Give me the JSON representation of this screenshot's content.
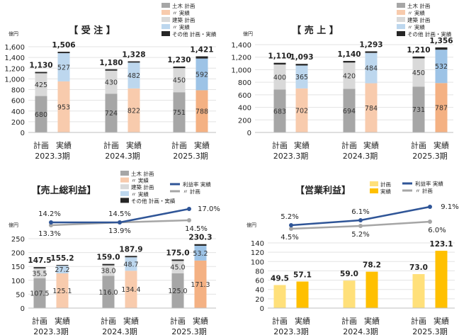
{
  "chart_data": [
    {
      "type": "bar",
      "title": "【 受 注 】",
      "unit": "億円",
      "ylim": [
        0,
        1600
      ],
      "yticks": [
        0,
        200,
        400,
        600,
        800,
        1000,
        1200,
        1400,
        1600
      ],
      "yticks_label": [
        "0",
        "200",
        "400",
        "600",
        "800",
        "1,000",
        "1,200",
        "1,400",
        "1,600"
      ],
      "categories": [
        "計画",
        "実績",
        "計画",
        "実績",
        "計画",
        "実績"
      ],
      "periods": [
        "2023.3期",
        "2024.3期",
        "2025.3期"
      ],
      "legend": [
        "土木 計画",
        "〃 実績",
        "建築 計画",
        "〃 実績",
        "その他 計画・実績"
      ],
      "series": [
        {
          "name": "土木",
          "values": [
            680,
            953,
            724,
            822,
            751,
            788
          ]
        },
        {
          "name": "建築",
          "values": [
            425,
            527,
            430,
            482,
            450,
            592
          ]
        },
        {
          "name": "その他",
          "values": [
            25,
            26,
            26,
            24,
            29,
            41
          ]
        }
      ],
      "totals": [
        "1,130",
        "1,506",
        "1,180",
        "1,328",
        "1,230",
        "1,421"
      ],
      "seg_labels": [
        [
          "680",
          "425"
        ],
        [
          "953",
          "527"
        ],
        [
          "724",
          "430"
        ],
        [
          "822",
          "482"
        ],
        [
          "751",
          "450"
        ],
        [
          "788",
          "592"
        ]
      ]
    },
    {
      "type": "bar",
      "title": "【 売 上 】",
      "unit": "億円",
      "ylim": [
        0,
        1400
      ],
      "yticks": [
        0,
        200,
        400,
        600,
        800,
        1000,
        1200,
        1400
      ],
      "yticks_label": [
        "0",
        "200",
        "400",
        "600",
        "800",
        "1,000",
        "1,200",
        "1,400"
      ],
      "categories": [
        "計画",
        "実績",
        "計画",
        "実績",
        "計画",
        "実績"
      ],
      "periods": [
        "2023.3期",
        "2024.3期",
        "2025.3期"
      ],
      "legend": [
        "土木 計画",
        "〃 実績",
        "建築 計画",
        "〃 実績",
        "その他 計画・実績"
      ],
      "series": [
        {
          "name": "土木",
          "values": [
            683,
            702,
            694,
            784,
            731,
            787
          ]
        },
        {
          "name": "建築",
          "values": [
            400,
            365,
            420,
            484,
            450,
            532
          ]
        },
        {
          "name": "その他",
          "values": [
            27,
            26,
            26,
            25,
            29,
            37
          ]
        }
      ],
      "totals": [
        "1,110",
        "1,093",
        "1,140",
        "1,293",
        "1,210",
        "1,356"
      ],
      "seg_labels": [
        [
          "683",
          "400"
        ],
        [
          "702",
          "365"
        ],
        [
          "694",
          "420"
        ],
        [
          "784",
          "484"
        ],
        [
          "731",
          "450"
        ],
        [
          "787",
          "532"
        ]
      ]
    },
    {
      "type": "bar",
      "title": "【売上総利益】",
      "unit": "億円",
      "ylim": [
        0,
        250
      ],
      "yticks": [
        0,
        50,
        100,
        150,
        200,
        250
      ],
      "yticks_label": [
        "0",
        "50",
        "100",
        "150",
        "200",
        "250"
      ],
      "categories": [
        "計画",
        "実績",
        "計画",
        "実績",
        "計画",
        "実績"
      ],
      "periods": [
        "2023.3期",
        "2024.3期",
        "2025.3期"
      ],
      "legend": [
        "土木 計画",
        "〃 実績",
        "建築 計画",
        "〃 実績",
        "その他 計画・実績",
        "利益率 実績",
        "〃 計画"
      ],
      "series": [
        {
          "name": "土木",
          "values": [
            107.5,
            125.1,
            116.0,
            134.4,
            125.0,
            171.3
          ]
        },
        {
          "name": "建築",
          "values": [
            35.5,
            27.2,
            38.0,
            48.7,
            45.0,
            53.2
          ]
        },
        {
          "name": "その他",
          "values": [
            4.5,
            2.9,
            5.0,
            4.8,
            5.0,
            5.8
          ]
        }
      ],
      "totals": [
        "147.5",
        "155.2",
        "159.0",
        "187.9",
        "175.0",
        "230.3"
      ],
      "seg_labels": [
        [
          "107.5",
          "35.5"
        ],
        [
          "125.1",
          "27.2"
        ],
        [
          "116.0",
          "38.0"
        ],
        [
          "134.4",
          "48.7"
        ],
        [
          "125.0",
          "45.0"
        ],
        [
          "171.3",
          "53.2"
        ]
      ],
      "margin_actual": [
        14.2,
        14.5,
        17.0
      ],
      "margin_plan": [
        13.3,
        13.9,
        14.5
      ],
      "margin_actual_labels": [
        "14.2%",
        "14.5%",
        "17.0%"
      ],
      "margin_plan_labels": [
        "13.3%",
        "13.9%",
        "14.5%"
      ]
    },
    {
      "type": "bar",
      "title": "【営業利益】",
      "unit": "億円",
      "ylim": [
        0,
        140
      ],
      "yticks": [
        0,
        20,
        40,
        60,
        80,
        100,
        120,
        140
      ],
      "yticks_label": [
        "0",
        "20",
        "40",
        "60",
        "80",
        "100",
        "120",
        "140"
      ],
      "categories": [
        "計画",
        "実績",
        "計画",
        "実績",
        "計画",
        "実績"
      ],
      "periods": [
        "2023.3期",
        "2024.3期",
        "2025.3期"
      ],
      "legend": [
        "計画",
        "実績",
        "利益率 実績",
        "〃 計画"
      ],
      "values": [
        49.5,
        57.1,
        59.0,
        78.2,
        73.0,
        123.1
      ],
      "totals": [
        "49.5",
        "57.1",
        "59.0",
        "78.2",
        "73.0",
        "123.1"
      ],
      "margin_actual": [
        5.2,
        6.1,
        9.1
      ],
      "margin_plan": [
        4.5,
        5.2,
        6.0
      ],
      "margin_actual_labels": [
        "5.2%",
        "6.1%",
        "9.1%"
      ],
      "margin_plan_labels": [
        "4.5%",
        "5.2%",
        "6.0%"
      ]
    }
  ],
  "colors": {
    "civil_plan": "#a6a6a6",
    "civil_actual": "#f8cbad",
    "civil_actual_2025": "#f4b183",
    "arch_plan": "#d9d9d9",
    "arch_actual": "#bdd7ee",
    "arch_actual_2025": "#9dc3e6",
    "other": "#262626",
    "margin_actual": "#2f5597",
    "margin_plan": "#a6a6a6",
    "op_plan": "#ffe07a",
    "op_actual": "#ffc000"
  }
}
